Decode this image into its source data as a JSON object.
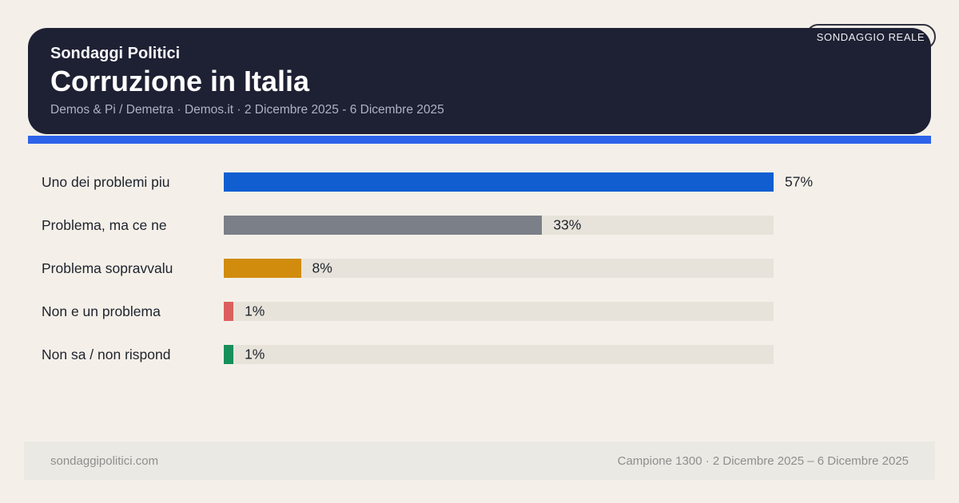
{
  "page": {
    "background": "#f4f0e9",
    "accent_stripe_color": "#2c63e9",
    "card_color": "#1e2033"
  },
  "badge": {
    "label": "SONDAGGIO REALE"
  },
  "header": {
    "kicker": "Sondaggi Politici",
    "title": "Corruzione in Italia",
    "subtitle": "Demos & Pi / Demetra · Demos.it · 2 Dicembre 2025 - 6 Dicembre 2025"
  },
  "chart_data": {
    "type": "bar",
    "orientation": "horizontal",
    "unit": "%",
    "scale_max": 57,
    "categories": [
      "Uno dei problemi piu",
      "Problema, ma ce ne",
      "Problema sopravvalu",
      "Non e un problema",
      "Non sa / non rispond"
    ],
    "values": [
      57,
      33,
      8,
      1,
      1
    ],
    "value_labels": [
      "57%",
      "33%",
      "8%",
      "1%",
      "1%"
    ],
    "bar_colors": [
      "#115ed1",
      "#7b7f88",
      "#d18c0e",
      "#dc5f5f",
      "#178f5a"
    ],
    "track_color": "#e7e3da",
    "legend": false,
    "gridlines": false
  },
  "footer": {
    "left": "sondaggipolitici.com",
    "right": "Campione 1300 · 2 Dicembre 2025 – 6 Dicembre 2025"
  }
}
